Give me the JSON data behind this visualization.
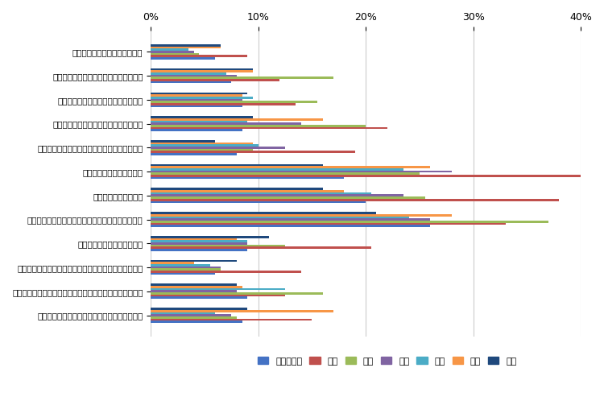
{
  "categories": [
    "助成金や補助金などの財源獲得",
    "モデル事業や国家戦略特区などへの採択",
    "事務・事業の再編・整理、廃止・統合",
    "民間委託の推進や指定管理者制度の活用",
    "業務の見直しや内部管理業務の効率化・集約化",
    "業務量に見合った人員配置",
    "専門人材の育成・配置",
    "公務外人材の活用（中途採用や兼業・副業の活用）",
    "地域住民や民間企業との連携",
    "業務のデジタル化（ペーパーレス化、クラウド化など）",
    "テクノロジーの活用（市販サービス・アプリの活用など）",
    "行政が取得している／取得できるデータの活用"
  ],
  "series": [
    {
      "name": "総務・企画",
      "color": "#4472C4",
      "values": [
        6.0,
        7.5,
        8.5,
        8.5,
        8.0,
        18.0,
        20.0,
        26.0,
        9.0,
        6.0,
        9.0,
        8.5
      ]
    },
    {
      "name": "税務",
      "color": "#C0504D",
      "values": [
        9.0,
        12.0,
        13.5,
        22.0,
        19.0,
        40.0,
        38.0,
        33.0,
        20.5,
        14.0,
        12.5,
        15.0
      ]
    },
    {
      "name": "民生",
      "color": "#9BBB59",
      "values": [
        4.5,
        17.0,
        15.5,
        20.0,
        9.5,
        25.0,
        25.5,
        37.0,
        12.5,
        6.5,
        16.0,
        8.0
      ]
    },
    {
      "name": "衛生",
      "color": "#8064A2",
      "values": [
        4.0,
        8.0,
        8.5,
        14.0,
        12.5,
        28.0,
        23.5,
        26.0,
        9.0,
        6.5,
        8.0,
        7.5
      ]
    },
    {
      "name": "土木",
      "color": "#4BACC6",
      "values": [
        3.5,
        7.0,
        9.5,
        9.0,
        10.0,
        23.5,
        20.5,
        24.0,
        9.0,
        5.5,
        12.5,
        6.0
      ]
    },
    {
      "name": "教育",
      "color": "#F79646",
      "values": [
        6.5,
        9.5,
        8.5,
        16.0,
        9.5,
        26.0,
        18.0,
        28.0,
        8.0,
        4.0,
        8.5,
        17.0
      ]
    },
    {
      "name": "消防",
      "color": "#1F497D",
      "values": [
        6.5,
        9.5,
        9.0,
        9.5,
        6.0,
        16.0,
        16.0,
        21.0,
        11.0,
        8.0,
        8.0,
        9.0
      ]
    }
  ],
  "xlim": [
    0,
    40
  ],
  "xticks": [
    0,
    10,
    20,
    30,
    40
  ],
  "xticklabels": [
    "0%",
    "10%",
    "20%",
    "30%",
    "40%"
  ],
  "figsize": [
    7.5,
    4.98
  ],
  "dpi": 100
}
